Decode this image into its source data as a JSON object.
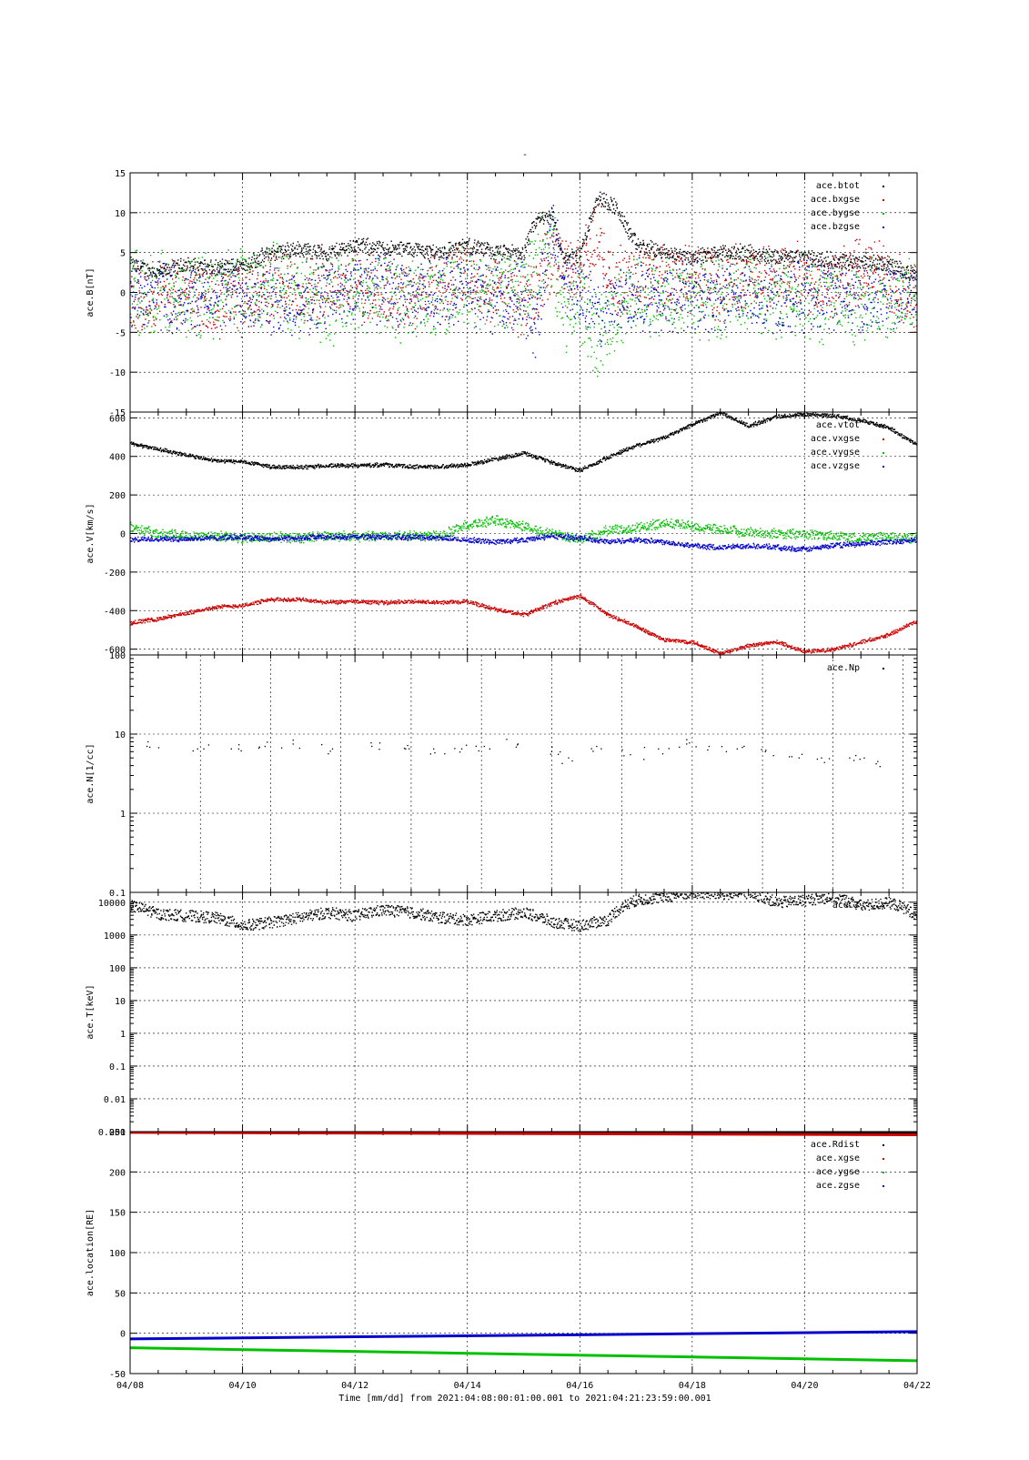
{
  "page_title": "-",
  "colors": {
    "black": "#000000",
    "red": "#cc0000",
    "green": "#00c000",
    "blue": "#0000cc"
  },
  "x_axis": {
    "tick_labels": [
      "04/08",
      "04/10",
      "04/12",
      "04/14",
      "04/16",
      "04/18",
      "04/20",
      "04/22"
    ],
    "label": "Time [mm/dd]  from 2021:04:08:00:01:00.001  to  2021:04:21:23:59:00.001"
  },
  "chart_data": [
    {
      "type": "scatter",
      "ylabel": "ace.B[nT]",
      "scale": "linear",
      "ylim": [
        -15,
        15
      ],
      "y_ticks": [
        -15,
        -10,
        -5,
        0,
        5,
        10,
        15
      ],
      "y_tick_labels": [
        "-15",
        "-10",
        "-5",
        "0",
        "5",
        "10",
        "15"
      ],
      "x_days": [
        0,
        0.5,
        1,
        1.5,
        2,
        2.5,
        3,
        3.5,
        4,
        4.5,
        5,
        5.5,
        6,
        6.5,
        7,
        7.2,
        7.5,
        7.7,
        8,
        8.3,
        8.6,
        9,
        9.5,
        10,
        10.5,
        11,
        11.5,
        12,
        12.5,
        13,
        13.5,
        14
      ],
      "series": [
        {
          "name": "ace.btot",
          "color": "black",
          "amp": 0.6,
          "values": [
            3.5,
            2.5,
            3.5,
            3,
            3.5,
            5,
            5.5,
            5,
            6,
            5.5,
            5.5,
            5,
            6,
            5,
            5,
            9,
            10,
            4,
            5,
            12,
            11,
            6,
            5,
            4.5,
            5,
            5,
            4.5,
            4.5,
            4,
            4,
            3.5,
            2
          ]
        },
        {
          "name": "ace.bxgse",
          "color": "red",
          "amp": 2.5,
          "values": [
            -1,
            0,
            0,
            -1,
            -1,
            1,
            0,
            1,
            1,
            0,
            0,
            1,
            2,
            0,
            -1,
            0,
            5,
            3,
            3,
            7,
            1,
            2,
            2,
            2,
            1,
            2,
            2,
            2,
            1,
            3,
            2,
            -2
          ]
        },
        {
          "name": "ace.bygse",
          "color": "green",
          "amp": 3,
          "values": [
            0,
            0,
            -1,
            0,
            1,
            1,
            0,
            -1,
            0,
            0,
            -1,
            0,
            1,
            0,
            0,
            3,
            6,
            -3,
            -1,
            -6,
            -2,
            0,
            -1,
            0,
            -1,
            0,
            -1,
            -1,
            -1,
            -1,
            -1,
            0
          ]
        },
        {
          "name": "ace.bzgse",
          "color": "blue",
          "amp": 2.5,
          "values": [
            0,
            0,
            -1,
            0,
            0,
            -1,
            -1,
            0,
            0,
            1,
            -1,
            0,
            1,
            -1,
            0,
            -4,
            8,
            2,
            0,
            -3,
            -1,
            0,
            -1,
            0,
            -1,
            0,
            -1,
            0,
            0,
            -1,
            0,
            0
          ]
        }
      ]
    },
    {
      "type": "scatter",
      "ylabel": "ace.V[km/s]",
      "scale": "linear",
      "ylim": [
        -630,
        630
      ],
      "y_ticks": [
        -600,
        -400,
        -200,
        0,
        200,
        400,
        600
      ],
      "y_tick_labels": [
        "-600",
        "-400",
        "-200",
        "0",
        "200",
        "400",
        "600"
      ],
      "x_days": [
        0,
        0.5,
        1,
        1.5,
        2,
        2.5,
        3,
        3.5,
        4,
        4.5,
        5,
        5.5,
        6,
        6.5,
        7,
        7.5,
        8,
        8.5,
        9,
        9.5,
        10,
        10.5,
        11,
        11.5,
        12,
        12.5,
        13,
        13.5,
        14
      ],
      "series": [
        {
          "name": "ace.vtot",
          "color": "black",
          "amp": 6,
          "values": [
            470,
            440,
            410,
            380,
            375,
            350,
            345,
            355,
            355,
            360,
            350,
            350,
            360,
            390,
            420,
            370,
            330,
            400,
            460,
            500,
            570,
            630,
            560,
            610,
            620,
            615,
            590,
            550,
            460
          ]
        },
        {
          "name": "ace.vxgse",
          "color": "red",
          "amp": 6,
          "values": [
            -460,
            -440,
            -410,
            -380,
            -370,
            -340,
            -340,
            -355,
            -350,
            -355,
            -350,
            -355,
            -350,
            -390,
            -420,
            -360,
            -320,
            -420,
            -480,
            -550,
            -560,
            -620,
            -580,
            -560,
            -610,
            -600,
            -560,
            -520,
            -450
          ]
        },
        {
          "name": "ace.vygse",
          "color": "green",
          "amp": 15,
          "values": [
            40,
            0,
            -5,
            -10,
            -20,
            -15,
            -20,
            -10,
            -15,
            -10,
            -10,
            -10,
            50,
            70,
            40,
            0,
            -30,
            20,
            30,
            60,
            40,
            20,
            10,
            0,
            0,
            -10,
            -20,
            -15,
            -20
          ]
        },
        {
          "name": "ace.vzgse",
          "color": "blue",
          "amp": 8,
          "values": [
            -30,
            -25,
            -25,
            -20,
            -15,
            -25,
            -20,
            -15,
            -15,
            -15,
            -15,
            -20,
            -30,
            -40,
            -30,
            -10,
            -20,
            -40,
            -30,
            -40,
            -60,
            -70,
            -60,
            -70,
            -80,
            -60,
            -50,
            -40,
            -30
          ]
        }
      ]
    },
    {
      "type": "scatter",
      "ylabel": "ace.N[1/cc]",
      "scale": "log",
      "ylim": [
        0.1,
        100
      ],
      "y_ticks": [
        0.1,
        1,
        10,
        100
      ],
      "y_tick_labels": [
        "0.1",
        "1",
        "10",
        "100"
      ],
      "x_tick_days": [
        0,
        1.25,
        2.5,
        3.75,
        5,
        6.25,
        7.5,
        8.75,
        10,
        11.25,
        12.5,
        13.75
      ],
      "x_tick_labels_shown": false,
      "series": [
        {
          "name": "ace.Np",
          "color": "black",
          "amp": 0.5,
          "sparse": true,
          "x_days": [
            0.3,
            1.2,
            1.8,
            2.4,
            2.9,
            3.6,
            4.3,
            4.9,
            5.4,
            5.9,
            6.3,
            6.9,
            7.5,
            7.8,
            8.3,
            8.9,
            9.4,
            9.9,
            10.3,
            10.8,
            11.3,
            11.9,
            12.3,
            12.8,
            13.3
          ],
          "values": [
            7,
            6.5,
            6.5,
            7,
            7.5,
            6.5,
            7,
            6.5,
            6.5,
            6.5,
            7,
            7.5,
            6,
            5,
            7,
            5.5,
            6.5,
            7.5,
            7,
            6.5,
            6,
            5,
            5,
            5,
            4.5
          ]
        }
      ]
    },
    {
      "type": "scatter",
      "ylabel": "ace.T[keV]",
      "scale": "log",
      "ylim": [
        0.001,
        20000
      ],
      "y_ticks": [
        0.001,
        0.01,
        0.1,
        1,
        10,
        100,
        1000,
        10000
      ],
      "y_tick_labels": [
        "0.001",
        "0.01",
        "0.1",
        "1",
        "10",
        "100",
        "1000",
        "10000"
      ],
      "x_days": [
        0,
        0.5,
        1,
        1.5,
        2,
        2.5,
        3,
        3.5,
        4,
        4.5,
        5,
        5.5,
        6,
        6.5,
        7,
        7.5,
        8,
        8.5,
        9,
        9.5,
        10,
        10.5,
        11,
        11.5,
        12,
        12.5,
        13,
        13.5,
        14
      ],
      "series": [
        {
          "name": "ace.T",
          "color": "black",
          "amp": 0.35,
          "log_jitter": true,
          "values": [
            8000,
            4500,
            4000,
            3500,
            2000,
            2500,
            3500,
            5000,
            4000,
            6000,
            5000,
            3500,
            3000,
            4000,
            5000,
            2500,
            2000,
            3000,
            12000,
            15000,
            20000,
            18000,
            20000,
            10000,
            12000,
            15000,
            8000,
            10000,
            4000
          ]
        }
      ]
    },
    {
      "type": "line",
      "ylabel": "ace.location[RE]",
      "scale": "linear",
      "ylim": [
        -50,
        250
      ],
      "y_ticks": [
        -50,
        0,
        50,
        100,
        150,
        200,
        250
      ],
      "y_tick_labels": [
        "-50",
        "0",
        "50",
        "100",
        "150",
        "200",
        "250"
      ],
      "x_days": [
        0,
        14
      ],
      "series": [
        {
          "name": "ace.Rdist",
          "color": "black",
          "amp": 0,
          "values": [
            250,
            248
          ]
        },
        {
          "name": "ace.xgse",
          "color": "red",
          "amp": 0,
          "values": [
            249,
            246
          ]
        },
        {
          "name": "ace.ygse",
          "color": "green",
          "amp": 0,
          "values": [
            -18,
            -34
          ]
        },
        {
          "name": "ace.zgse",
          "color": "blue",
          "amp": 0,
          "values": [
            -7,
            2
          ]
        }
      ]
    }
  ]
}
